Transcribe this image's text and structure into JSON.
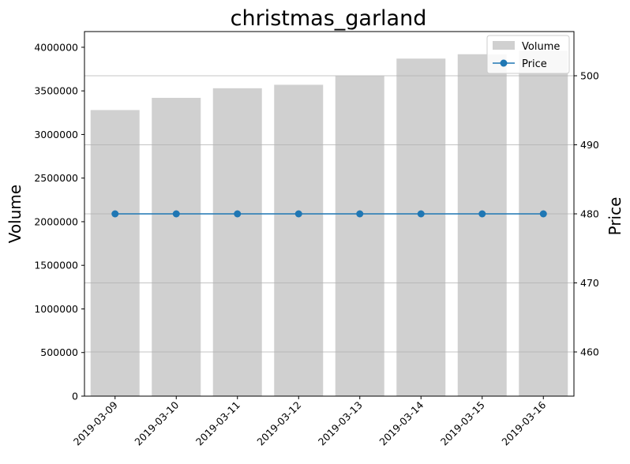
{
  "chart_data": {
    "type": "bar",
    "title": "christmas_garland",
    "categories": [
      "2019-03-09",
      "2019-03-10",
      "2019-03-11",
      "2019-03-12",
      "2019-03-13",
      "2019-03-14",
      "2019-03-15",
      "2019-03-16"
    ],
    "series": [
      {
        "name": "Volume",
        "type": "bar",
        "axis": "left",
        "color": "#d0d0d0",
        "values": [
          3280000,
          3420000,
          3530000,
          3570000,
          3670000,
          3870000,
          3920000,
          3960000
        ]
      },
      {
        "name": "Price",
        "type": "line",
        "axis": "right",
        "color": "#1f77b4",
        "values": [
          480,
          480,
          480,
          480,
          480,
          480,
          480,
          480
        ]
      }
    ],
    "ylabel": "Volume",
    "y2label": "Price",
    "ylim": [
      0,
      4180000
    ],
    "y2lim": [
      453.6,
      506.4
    ],
    "yticks": [
      0,
      500000,
      1000000,
      1500000,
      2000000,
      2500000,
      3000000,
      3500000,
      4000000
    ],
    "y2ticks": [
      460,
      470,
      480,
      490,
      500
    ],
    "grid": "horizontal-right-axis",
    "legend_position": "top-right"
  }
}
